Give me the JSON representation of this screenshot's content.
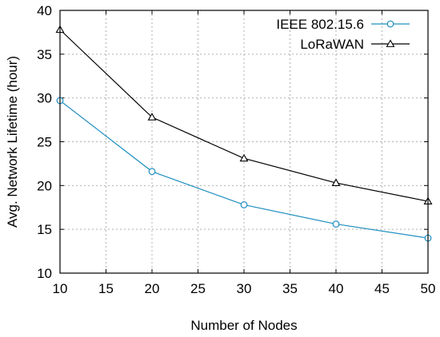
{
  "chart_data": {
    "type": "line",
    "xlabel": "Number of Nodes",
    "ylabel": "Avg. Network Lifetime (hour)",
    "xlim": [
      10,
      50
    ],
    "ylim": [
      10,
      40
    ],
    "xticks": [
      10,
      15,
      20,
      25,
      30,
      35,
      40,
      45,
      50
    ],
    "yticks": [
      10,
      15,
      20,
      25,
      30,
      35,
      40
    ],
    "grid": true,
    "legend_position": "top-right",
    "series": [
      {
        "name": "IEEE 802.15.6",
        "color": "#1f8fc0",
        "marker": "circle",
        "x": [
          10,
          20,
          30,
          40,
          50
        ],
        "values": [
          29.7,
          21.6,
          17.8,
          15.6,
          14.0
        ]
      },
      {
        "name": "LoRaWAN",
        "color": "#000000",
        "marker": "triangle",
        "x": [
          10,
          20,
          30,
          40,
          50
        ],
        "values": [
          37.8,
          27.8,
          23.1,
          20.3,
          18.2
        ]
      }
    ]
  }
}
